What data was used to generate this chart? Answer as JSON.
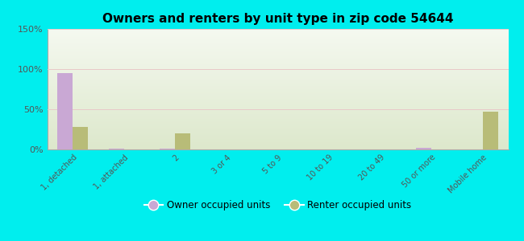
{
  "title": "Owners and renters by unit type in zip code 54644",
  "categories": [
    "1, detached",
    "1, attached",
    "2",
    "3 or 4",
    "5 to 9",
    "10 to 19",
    "20 to 49",
    "50 or more",
    "Mobile home"
  ],
  "owner_values": [
    95,
    1,
    1,
    0,
    0,
    0,
    0,
    2,
    0
  ],
  "renter_values": [
    28,
    0,
    20,
    0,
    0,
    0,
    0,
    0,
    47
  ],
  "owner_color": "#c9a8d4",
  "renter_color": "#b8bc78",
  "background_color": "#00eeee",
  "plot_bg_top": "#eaf2e8",
  "plot_bg_bottom": "#dde8cc",
  "ylim": [
    0,
    150
  ],
  "yticks": [
    0,
    50,
    100,
    150
  ],
  "ytick_labels": [
    "0%",
    "50%",
    "100%",
    "150%"
  ],
  "legend_owner": "Owner occupied units",
  "legend_renter": "Renter occupied units",
  "bar_width": 0.3
}
